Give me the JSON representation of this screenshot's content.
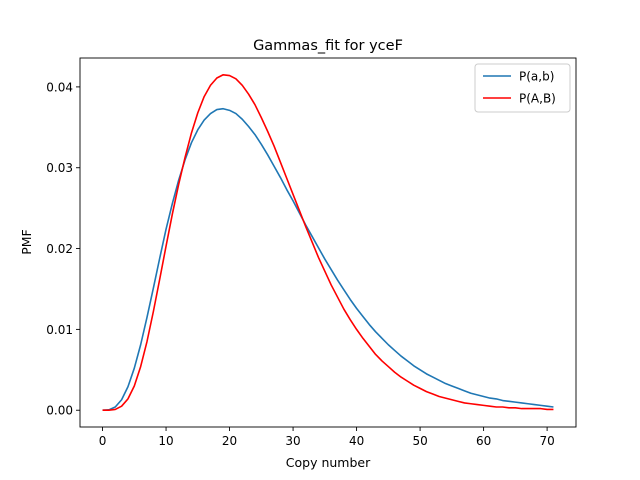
{
  "chart_data": {
    "type": "line",
    "title": "Gammas_fit for yceF",
    "xlabel": "Copy number",
    "ylabel": "PMF",
    "xlim": [
      -3.55,
      74.55
    ],
    "ylim": [
      -0.002075,
      0.043575
    ],
    "xticks": [
      0,
      10,
      20,
      30,
      40,
      50,
      60,
      70
    ],
    "yticks": [
      0.0,
      0.01,
      0.02,
      0.03,
      0.04
    ],
    "ytick_labels": [
      "0.00",
      "0.01",
      "0.02",
      "0.03",
      "0.04"
    ],
    "grid": false,
    "legend_position": "top-right",
    "x": [
      0,
      1,
      2,
      3,
      4,
      5,
      6,
      7,
      8,
      9,
      10,
      11,
      12,
      13,
      14,
      15,
      16,
      17,
      18,
      19,
      20,
      21,
      22,
      23,
      24,
      25,
      26,
      27,
      28,
      29,
      30,
      31,
      32,
      33,
      34,
      35,
      36,
      37,
      38,
      39,
      40,
      41,
      42,
      43,
      44,
      45,
      46,
      47,
      48,
      49,
      50,
      51,
      52,
      53,
      54,
      55,
      56,
      57,
      58,
      59,
      60,
      61,
      62,
      63,
      64,
      65,
      66,
      67,
      68,
      69,
      70,
      71
    ],
    "series": [
      {
        "name": "P(a,b)",
        "color": "#1f77b4",
        "values": [
          0.0,
          5e-05,
          0.0004,
          0.0013,
          0.0029,
          0.0052,
          0.0081,
          0.0115,
          0.0151,
          0.0188,
          0.0224,
          0.0256,
          0.0285,
          0.031,
          0.0331,
          0.0347,
          0.0359,
          0.0367,
          0.0372,
          0.0373,
          0.0371,
          0.0367,
          0.036,
          0.0351,
          0.0341,
          0.0329,
          0.0316,
          0.0302,
          0.0288,
          0.0273,
          0.0259,
          0.0244,
          0.0229,
          0.0215,
          0.0201,
          0.0187,
          0.0174,
          0.0161,
          0.0149,
          0.0137,
          0.0126,
          0.0116,
          0.0106,
          0.0097,
          0.0089,
          0.0081,
          0.0074,
          0.0067,
          0.0061,
          0.0055,
          0.005,
          0.0045,
          0.0041,
          0.0037,
          0.0033,
          0.003,
          0.0027,
          0.0024,
          0.0021,
          0.0019,
          0.0017,
          0.0015,
          0.0014,
          0.0012,
          0.0011,
          0.001,
          0.0009,
          0.0008,
          0.0007,
          0.0006,
          0.0005,
          0.0004
        ]
      },
      {
        "name": "P(A,B)",
        "color": "#ff0000",
        "values": [
          0.0,
          0.0,
          0.0001,
          0.0005,
          0.0014,
          0.003,
          0.0054,
          0.0085,
          0.0122,
          0.0162,
          0.0203,
          0.0243,
          0.028,
          0.0313,
          0.0343,
          0.0368,
          0.0388,
          0.0402,
          0.0411,
          0.0415,
          0.0414,
          0.041,
          0.0402,
          0.0391,
          0.0378,
          0.0362,
          0.0345,
          0.0327,
          0.0307,
          0.0287,
          0.0267,
          0.0247,
          0.0227,
          0.0208,
          0.0189,
          0.0172,
          0.0155,
          0.014,
          0.0125,
          0.0112,
          0.01,
          0.0089,
          0.0079,
          0.0069,
          0.0061,
          0.0054,
          0.0047,
          0.0041,
          0.0036,
          0.0031,
          0.0027,
          0.0023,
          0.002,
          0.0017,
          0.0015,
          0.0013,
          0.0011,
          0.0009,
          0.0008,
          0.0007,
          0.0006,
          0.0005,
          0.0004,
          0.0004,
          0.0003,
          0.0003,
          0.0002,
          0.0002,
          0.0002,
          0.0002,
          0.0001,
          0.0001
        ]
      }
    ]
  }
}
